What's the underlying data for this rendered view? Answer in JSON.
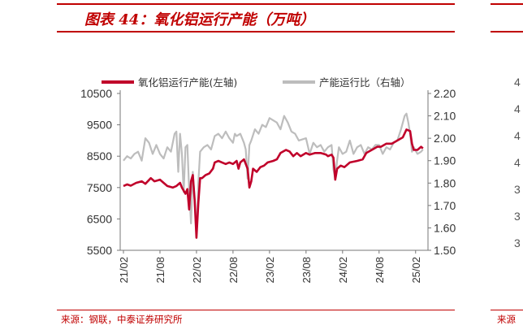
{
  "title": "图表 44：氧化铝运行产能（万吨）",
  "source": "来源：钢联，中泰证券研究所",
  "right_panel": {
    "source_fragment": "来源",
    "axis_ticks_fragment": [
      "4",
      "4",
      "4",
      "4",
      "3",
      "3",
      "3"
    ]
  },
  "colors": {
    "primary": "#c0002a",
    "secondary": "#bdbdbd",
    "accent": "#c00000"
  },
  "chart_data": {
    "type": "line",
    "title": "",
    "x": [
      "21/02",
      "21/08",
      "22/02",
      "22/08",
      "23/02",
      "23/08",
      "24/02",
      "24/08",
      "25/02"
    ],
    "y_left": {
      "ticks": [
        5500,
        6500,
        7500,
        8500,
        9500,
        10500
      ],
      "range": [
        5500,
        10500
      ]
    },
    "y_right": {
      "ticks": [
        "1.50",
        "1.60",
        "1.70",
        "1.80",
        "1.90",
        "2.00",
        "2.10",
        "2.20"
      ],
      "range": [
        1.5,
        2.2
      ]
    },
    "series": [
      {
        "name": "氧化铝运行产能(左轴)",
        "axis": "left",
        "color": "#c0002a",
        "points": [
          [
            0,
            7550
          ],
          [
            0.1,
            7600
          ],
          [
            0.2,
            7560
          ],
          [
            0.35,
            7650
          ],
          [
            0.5,
            7700
          ],
          [
            0.6,
            7620
          ],
          [
            0.75,
            7800
          ],
          [
            0.85,
            7700
          ],
          [
            1.0,
            7750
          ],
          [
            1.1,
            7650
          ],
          [
            1.2,
            7550
          ],
          [
            1.35,
            7500
          ],
          [
            1.45,
            7550
          ],
          [
            1.55,
            7650
          ],
          [
            1.6,
            7500
          ],
          [
            1.7,
            7300
          ],
          [
            1.75,
            7450
          ],
          [
            1.8,
            6800
          ],
          [
            1.85,
            7700
          ],
          [
            1.9,
            7900
          ],
          [
            1.95,
            7100
          ],
          [
            2.0,
            5900
          ],
          [
            2.05,
            7000
          ],
          [
            2.1,
            7800
          ],
          [
            2.15,
            7800
          ],
          [
            2.25,
            7900
          ],
          [
            2.35,
            7950
          ],
          [
            2.45,
            8100
          ],
          [
            2.5,
            8300
          ],
          [
            2.6,
            8350
          ],
          [
            2.7,
            8300
          ],
          [
            2.8,
            8250
          ],
          [
            2.9,
            8300
          ],
          [
            3.0,
            8250
          ],
          [
            3.1,
            8350
          ],
          [
            3.15,
            8100
          ],
          [
            3.2,
            8300
          ],
          [
            3.3,
            8400
          ],
          [
            3.4,
            8100
          ],
          [
            3.45,
            7500
          ],
          [
            3.5,
            7700
          ],
          [
            3.55,
            8100
          ],
          [
            3.65,
            8000
          ],
          [
            3.75,
            8150
          ],
          [
            3.85,
            8200
          ],
          [
            3.95,
            8300
          ],
          [
            4.1,
            8350
          ],
          [
            4.2,
            8400
          ],
          [
            4.3,
            8600
          ],
          [
            4.45,
            8700
          ],
          [
            4.55,
            8650
          ],
          [
            4.65,
            8500
          ],
          [
            4.75,
            8600
          ],
          [
            4.85,
            8500
          ],
          [
            5.0,
            8600
          ],
          [
            5.1,
            8550
          ],
          [
            5.25,
            8600
          ],
          [
            5.4,
            8600
          ],
          [
            5.55,
            8550
          ],
          [
            5.6,
            8500
          ],
          [
            5.7,
            8550
          ],
          [
            5.75,
            8450
          ],
          [
            5.8,
            7750
          ],
          [
            5.85,
            8100
          ],
          [
            5.95,
            8200
          ],
          [
            6.05,
            8150
          ],
          [
            6.2,
            8300
          ],
          [
            6.4,
            8350
          ],
          [
            6.55,
            8400
          ],
          [
            6.65,
            8600
          ],
          [
            6.8,
            8700
          ],
          [
            6.95,
            8800
          ],
          [
            7.05,
            8800
          ],
          [
            7.2,
            8900
          ],
          [
            7.35,
            8900
          ],
          [
            7.5,
            9000
          ],
          [
            7.65,
            9100
          ],
          [
            7.75,
            9350
          ],
          [
            7.85,
            9300
          ],
          [
            7.9,
            8900
          ],
          [
            7.95,
            8700
          ],
          [
            8.05,
            8700
          ],
          [
            8.15,
            8800
          ],
          [
            8.2,
            8750
          ]
        ]
      },
      {
        "name": "产能运行比（右轴）",
        "axis": "right",
        "color": "#bdbdbd",
        "points": [
          [
            0,
            1.9
          ],
          [
            0.1,
            1.92
          ],
          [
            0.2,
            1.91
          ],
          [
            0.3,
            1.93
          ],
          [
            0.4,
            1.94
          ],
          [
            0.5,
            1.9
          ],
          [
            0.6,
            2.0
          ],
          [
            0.7,
            1.98
          ],
          [
            0.8,
            1.93
          ],
          [
            0.9,
            1.97
          ],
          [
            1.0,
            1.93
          ],
          [
            1.1,
            1.91
          ],
          [
            1.2,
            1.96
          ],
          [
            1.3,
            1.94
          ],
          [
            1.4,
            2.02
          ],
          [
            1.45,
            2.03
          ],
          [
            1.5,
            1.85
          ],
          [
            1.55,
            2.02
          ],
          [
            1.6,
            1.93
          ],
          [
            1.65,
            1.76
          ],
          [
            1.7,
            1.96
          ],
          [
            1.75,
            1.97
          ],
          [
            1.8,
            1.77
          ],
          [
            1.85,
            1.62
          ],
          [
            1.9,
            1.85
          ],
          [
            1.95,
            1.72
          ],
          [
            2.0,
            1.56
          ],
          [
            2.05,
            1.8
          ],
          [
            2.1,
            1.94
          ],
          [
            2.2,
            1.96
          ],
          [
            2.3,
            1.97
          ],
          [
            2.4,
            1.95
          ],
          [
            2.5,
            2.01
          ],
          [
            2.6,
            2.02
          ],
          [
            2.7,
            2.0
          ],
          [
            2.8,
            2.03
          ],
          [
            2.9,
            2.0
          ],
          [
            3.0,
            1.98
          ],
          [
            3.05,
            2.02
          ],
          [
            3.1,
            2.01
          ],
          [
            3.2,
            2.02
          ],
          [
            3.3,
            1.98
          ],
          [
            3.35,
            1.95
          ],
          [
            3.4,
            1.82
          ],
          [
            3.45,
            1.97
          ],
          [
            3.5,
            1.99
          ],
          [
            3.6,
            2.04
          ],
          [
            3.7,
            2.02
          ],
          [
            3.8,
            2.06
          ],
          [
            3.9,
            2.05
          ],
          [
            4.0,
            2.09
          ],
          [
            4.1,
            2.08
          ],
          [
            4.2,
            2.07
          ],
          [
            4.3,
            2.04
          ],
          [
            4.4,
            2.1
          ],
          [
            4.5,
            2.07
          ],
          [
            4.6,
            2.03
          ],
          [
            4.7,
            2.02
          ],
          [
            4.8,
            1.99
          ],
          [
            5.0,
            2.0
          ],
          [
            5.1,
            1.93
          ],
          [
            5.2,
            1.98
          ],
          [
            5.3,
            1.96
          ],
          [
            5.4,
            1.97
          ],
          [
            5.5,
            1.94
          ],
          [
            5.6,
            1.96
          ],
          [
            5.7,
            1.97
          ],
          [
            5.75,
            1.86
          ],
          [
            5.8,
            1.82
          ],
          [
            5.85,
            1.9
          ],
          [
            5.9,
            1.96
          ],
          [
            6.0,
            1.93
          ],
          [
            6.1,
            1.94
          ],
          [
            6.2,
            1.99
          ],
          [
            6.3,
            1.93
          ],
          [
            6.4,
            1.96
          ],
          [
            6.5,
            1.97
          ],
          [
            6.6,
            1.93
          ],
          [
            6.7,
            1.96
          ],
          [
            6.8,
            1.95
          ],
          [
            6.9,
            1.97
          ],
          [
            7.0,
            1.97
          ],
          [
            7.1,
            1.93
          ],
          [
            7.2,
            1.96
          ],
          [
            7.3,
            1.95
          ],
          [
            7.4,
            1.98
          ],
          [
            7.5,
            1.99
          ],
          [
            7.6,
            2.04
          ],
          [
            7.7,
            2.1
          ],
          [
            7.75,
            2.11
          ],
          [
            7.8,
            2.07
          ],
          [
            7.85,
            2.02
          ],
          [
            7.9,
            1.94
          ],
          [
            7.95,
            1.96
          ],
          [
            8.05,
            1.93
          ],
          [
            8.15,
            1.94
          ],
          [
            8.2,
            1.95
          ]
        ]
      }
    ]
  }
}
